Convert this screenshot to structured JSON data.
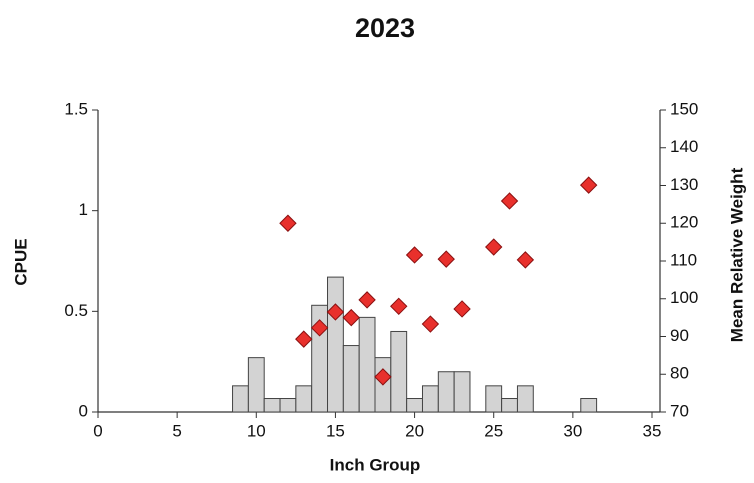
{
  "chart_data": {
    "type": "bar",
    "title": "2023",
    "x_label": "Inch Group",
    "y_label": "CPUE",
    "y2_label": "Mean Relative Weight",
    "xlim": [
      0,
      35
    ],
    "xticks": [
      0,
      5,
      10,
      15,
      20,
      25,
      30,
      35
    ],
    "ylim": [
      0,
      1.5
    ],
    "yticks": [
      0,
      0.5,
      1,
      1.5
    ],
    "y2lim": [
      70,
      150
    ],
    "y2ticks": [
      70,
      80,
      90,
      100,
      110,
      120,
      130,
      140,
      150
    ],
    "series": [
      {
        "type": "bar",
        "color": "#d3d3d3",
        "x": [
          9,
          10,
          11,
          12,
          13,
          14,
          15,
          16,
          17,
          18,
          19,
          20,
          21,
          22,
          23,
          25,
          26,
          27,
          31
        ],
        "values": [
          0.13,
          0.27,
          0.067,
          0.067,
          0.13,
          0.53,
          0.67,
          0.33,
          0.47,
          0.27,
          0.4,
          0.067,
          0.13,
          0.2,
          0.2,
          0.13,
          0.067,
          0.13,
          0.067
        ]
      },
      {
        "type": "scatter",
        "axis": "y2",
        "color": "#e8302c",
        "x": [
          12,
          13,
          14,
          15,
          16,
          17,
          18,
          19,
          20,
          21,
          22,
          23,
          25,
          26,
          27,
          31
        ],
        "values": [
          120,
          89.3,
          92.3,
          96.5,
          95,
          99.7,
          79.3,
          98,
          111.6,
          93.3,
          110.5,
          97.3,
          113.7,
          125.9,
          110.3,
          130.1
        ]
      }
    ]
  }
}
